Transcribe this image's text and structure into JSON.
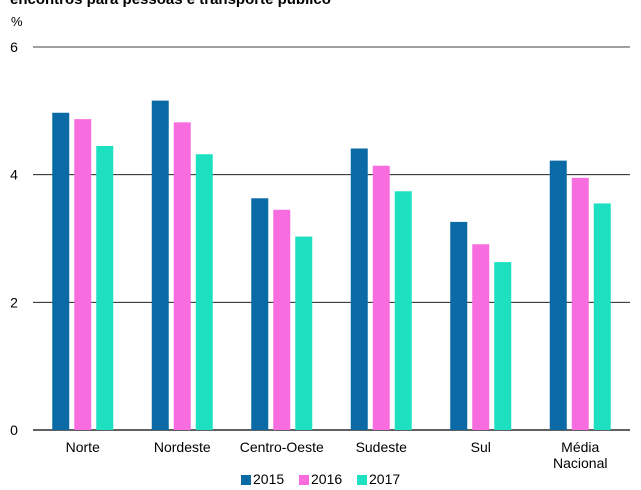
{
  "chart_data": {
    "type": "bar",
    "title": "encontros para pessoas e transporte público",
    "unit": "%",
    "categories": [
      [
        "Norte"
      ],
      [
        "Nordeste"
      ],
      [
        "Centro-Oeste"
      ],
      [
        "Sudeste"
      ],
      [
        "Sul"
      ],
      [
        "Média",
        "Nacional"
      ]
    ],
    "series": [
      {
        "name": "2015",
        "color": "#0a6aa5",
        "values": [
          4.97,
          5.16,
          3.63,
          4.41,
          3.26,
          4.22
        ]
      },
      {
        "name": "2016",
        "color": "#f76ddf",
        "values": [
          4.87,
          4.82,
          3.45,
          4.14,
          2.91,
          3.95
        ]
      },
      {
        "name": "2017",
        "color": "#1de0c0",
        "values": [
          4.45,
          4.32,
          3.03,
          3.74,
          2.63,
          3.55
        ]
      }
    ],
    "yticks": [
      0,
      2,
      4,
      6
    ],
    "ylim": [
      0,
      6
    ],
    "grid": true,
    "legend_position": "bottom"
  }
}
